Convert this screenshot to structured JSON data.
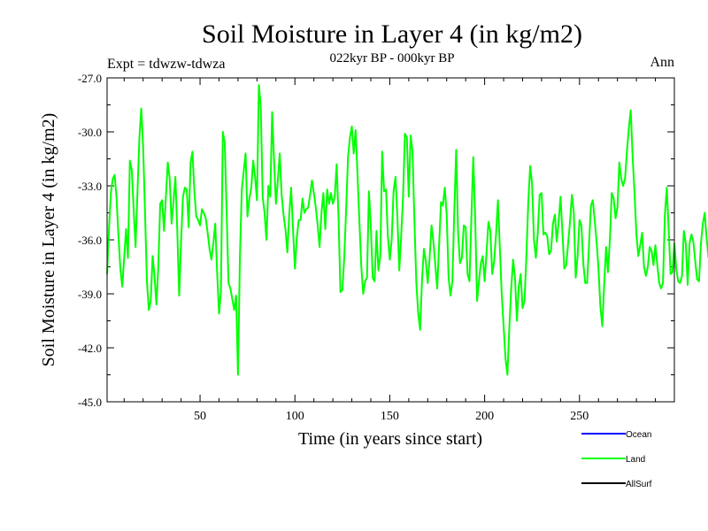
{
  "chart_data": {
    "type": "line",
    "title": "Soil Moisture in Layer 4 (in kg/m2)",
    "subtitle": "022kyr BP - 000kyr BP",
    "experiment": "Expt = tdwzw-tdwza",
    "season": "Ann",
    "xlabel": "Time (in years since start)",
    "ylabel": "Soil Moisture in Layer 4 (in kg/m2)",
    "xlim": [
      1,
      300
    ],
    "ylim": [
      -45.0,
      -27.0
    ],
    "x_ticks": [
      50,
      100,
      150,
      200,
      250
    ],
    "x_tick_labels": [
      "50",
      "100",
      "150",
      "200",
      "250"
    ],
    "y_ticks": [
      -45.0,
      -42.0,
      -39.0,
      -36.0,
      -33.0,
      -30.0,
      -27.0
    ],
    "y_tick_labels": [
      "-45.0",
      "-42.0",
      "-39.0",
      "-36.0",
      "-33.0",
      "-30.0",
      "-27.0"
    ],
    "legend": [
      {
        "name": "Ocean",
        "color": "#0000ff"
      },
      {
        "name": "Land",
        "color": "#00ff00"
      },
      {
        "name": "AllSurf",
        "color": "#000000"
      }
    ],
    "series": [
      {
        "name": "Land",
        "color": "#00ff00",
        "x_start": 1,
        "x_step": 1,
        "values": [
          -37.9,
          -35.4,
          -33.4,
          -32.6,
          -32.4,
          -33.7,
          -35.8,
          -37.6,
          -38.6,
          -37.0,
          -35.4,
          -37.0,
          -31.6,
          -32.1,
          -34.3,
          -36.4,
          -33.4,
          -30.4,
          -28.7,
          -30.8,
          -34.5,
          -38.3,
          -39.9,
          -39.4,
          -36.9,
          -38.0,
          -39.6,
          -37.5,
          -34.0,
          -33.8,
          -35.5,
          -33.6,
          -31.7,
          -32.6,
          -35.1,
          -33.9,
          -32.5,
          -35.5,
          -39.1,
          -36.1,
          -33.6,
          -33.1,
          -33.2,
          -35.3,
          -31.7,
          -31.1,
          -33.3,
          -34.7,
          -34.9,
          -35.2,
          -34.3,
          -34.5,
          -34.8,
          -35.6,
          -36.5,
          -37.1,
          -36.2,
          -35.1,
          -37.8,
          -40.1,
          -38.9,
          -30.0,
          -30.6,
          -34.4,
          -38.4,
          -38.7,
          -39.3,
          -39.9,
          -39.1,
          -43.5,
          -37.0,
          -33.2,
          -32.2,
          -31.2,
          -34.7,
          -33.7,
          -33.1,
          -31.6,
          -32.5,
          -33.8,
          -27.4,
          -28.6,
          -33.6,
          -34.5,
          -36.0,
          -33.0,
          -33.6,
          -28.9,
          -31.6,
          -34.0,
          -32.7,
          -31.2,
          -33.5,
          -34.6,
          -35.4,
          -36.7,
          -34.6,
          -33.1,
          -35.4,
          -37.6,
          -35.9,
          -34.9,
          -34.9,
          -33.7,
          -34.5,
          -34.3,
          -34.2,
          -33.5,
          -32.7,
          -33.4,
          -34.2,
          -35.2,
          -36.4,
          -34.5,
          -33.4,
          -35.4,
          -33.2,
          -34.0,
          -33.4,
          -34.0,
          -33.6,
          -31.8,
          -34.8,
          -38.9,
          -38.8,
          -37.0,
          -34.3,
          -31.4,
          -30.3,
          -29.7,
          -31.2,
          -29.9,
          -32.4,
          -35.0,
          -37.5,
          -39.0,
          -38.3,
          -38.1,
          -33.3,
          -35.2,
          -38.1,
          -38.3,
          -35.5,
          -37.7,
          -36.9,
          -31.1,
          -33.3,
          -33.2,
          -35.8,
          -37.1,
          -36.0,
          -33.3,
          -32.5,
          -34.7,
          -37.7,
          -35.8,
          -33.6,
          -30.1,
          -30.3,
          -33.6,
          -30.2,
          -31.1,
          -35.0,
          -38.4,
          -40.1,
          -41.0,
          -38.2,
          -36.5,
          -37.2,
          -38.4,
          -37.0,
          -35.2,
          -36.1,
          -37.4,
          -38.7,
          -36.3,
          -33.9,
          -34.1,
          -33.1,
          -34.6,
          -38.1,
          -39.1,
          -38.3,
          -34.4,
          -31.0,
          -35.6,
          -37.3,
          -37.0,
          -35.2,
          -35.3,
          -37.9,
          -38.3,
          -34.8,
          -31.4,
          -34.7,
          -39.4,
          -38.3,
          -37.3,
          -36.9,
          -38.3,
          -36.7,
          -35.0,
          -35.5,
          -37.9,
          -37.2,
          -35.7,
          -33.8,
          -36.4,
          -39.0,
          -40.8,
          -42.6,
          -43.5,
          -40.9,
          -38.7,
          -37.1,
          -38.1,
          -40.5,
          -38.6,
          -37.9,
          -39.8,
          -39.4,
          -36.9,
          -33.9,
          -31.9,
          -32.9,
          -36.0,
          -37.0,
          -35.6,
          -33.5,
          -33.4,
          -35.7,
          -35.6,
          -35.8,
          -36.8,
          -36.6,
          -35.1,
          -34.6,
          -36.1,
          -35.0,
          -33.6,
          -35.6,
          -37.6,
          -37.4,
          -36.2,
          -35.0,
          -33.5,
          -34.5,
          -38.1,
          -36.9,
          -34.9,
          -35.2,
          -37.3,
          -38.4,
          -38.4,
          -36.3,
          -34.1,
          -33.8,
          -34.9,
          -36.1,
          -37.6,
          -39.7,
          -40.8,
          -38.5,
          -36.4,
          -37.8,
          -36.0,
          -33.4,
          -33.7,
          -34.8,
          -34.2,
          -31.7,
          -32.6,
          -33.0,
          -32.6,
          -31.1,
          -29.8,
          -28.8,
          -31.4,
          -33.4,
          -35.7,
          -36.9,
          -36.3,
          -35.6,
          -37.5,
          -38.0,
          -37.5,
          -36.4,
          -36.6,
          -37.4,
          -36.3,
          -37.4,
          -38.4,
          -38.7,
          -38.4,
          -34.6,
          -33.1,
          -35.4,
          -37.9,
          -37.8,
          -36.2,
          -37.6,
          -38.3,
          -38.4,
          -38.0,
          -35.5,
          -36.2,
          -38.5,
          -36.2,
          -35.7,
          -36.1,
          -37.2,
          -38.2,
          -38.3,
          -36.2,
          -35.1,
          -34.5,
          -35.9,
          -37.0
        ]
      }
    ]
  }
}
